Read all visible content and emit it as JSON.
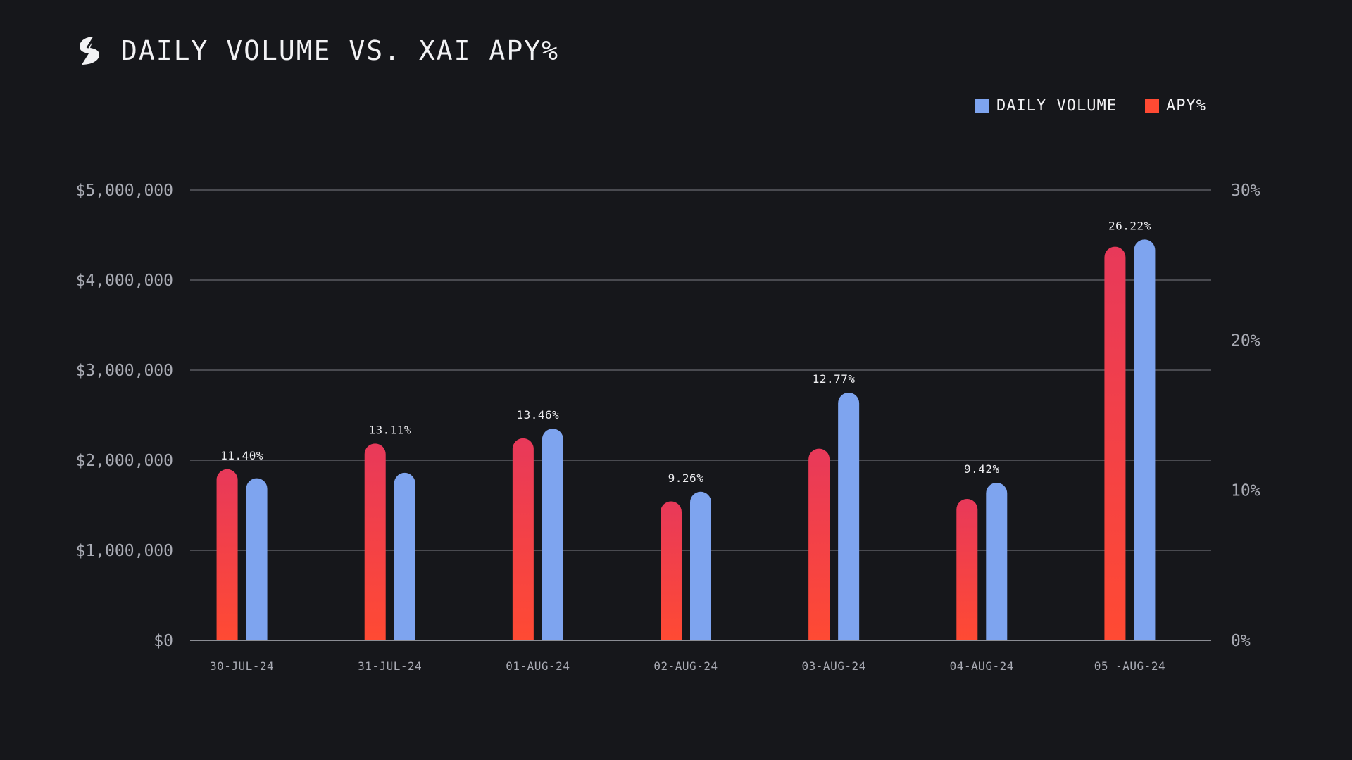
{
  "header": {
    "title": "DAILY VOLUME VS. XAI APY%"
  },
  "legend": {
    "volume_label": "DAILY VOLUME",
    "apy_label": "APY%"
  },
  "colors": {
    "background": "#16171b",
    "volume": "#7ea4ef",
    "apy_top": "#e8395a",
    "apy_bottom": "#ff4a33",
    "grid": "#5a5c63"
  },
  "chart_data": {
    "type": "bar",
    "title": "DAILY VOLUME VS. XAI APY%",
    "categories": [
      "30-JUL-24",
      "31-JUL-24",
      "01-AUG-24",
      "02-AUG-24",
      "03-AUG-24",
      "04-AUG-24",
      "05 -AUG-24"
    ],
    "series": [
      {
        "name": "APY%",
        "axis": "right",
        "values": [
          11.4,
          13.11,
          13.46,
          9.26,
          12.77,
          9.42,
          26.22
        ],
        "labels": [
          "11.40%",
          "13.11%",
          "13.46%",
          "9.26%",
          "12.77%",
          "9.42%",
          "26.22%"
        ]
      },
      {
        "name": "DAILY VOLUME",
        "axis": "left",
        "values": [
          1800000,
          1860000,
          2350000,
          1650000,
          2750000,
          1750000,
          4450000
        ]
      }
    ],
    "left_axis": {
      "ylim": [
        0,
        5000000
      ],
      "ticks": [
        0,
        1000000,
        2000000,
        3000000,
        4000000,
        5000000
      ],
      "tick_labels": [
        "$0",
        "$1,000,000",
        "$2,000,000",
        "$3,000,000",
        "$4,000,000",
        "$5,000,000"
      ]
    },
    "right_axis": {
      "ylim": [
        0,
        30
      ],
      "ticks": [
        0,
        10,
        20,
        30
      ],
      "tick_labels": [
        "0%",
        "10%",
        "20%",
        "30%"
      ]
    },
    "legend_position": "top-right",
    "grid": true
  }
}
